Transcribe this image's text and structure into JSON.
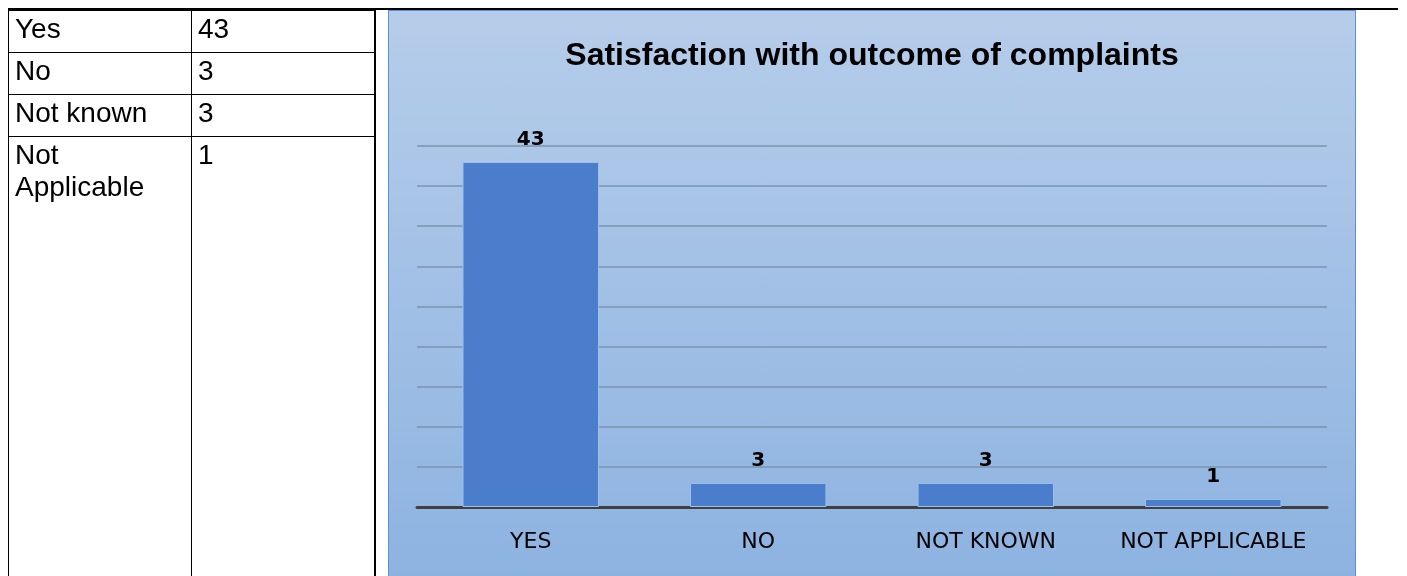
{
  "chart_data": [
    {
      "type": "other",
      "categories": [
        "Yes",
        "No",
        "Not known",
        "Not Applicable"
      ],
      "values": [
        43,
        3,
        3,
        1
      ],
      "data_labels": true
    },
    {
      "type": "bar",
      "title": "Satisfaction with outcome of complaints",
      "categories": [
        "YES",
        "NO",
        "NOT KNOWN",
        "NOT APPLICABLE"
      ],
      "values": [
        43,
        3,
        3,
        1
      ],
      "color": "#4a7dcb",
      "ylim": [
        0,
        45
      ],
      "yticks": [
        {
          "value": 0,
          "label": null
        },
        {
          "value": 5,
          "label": null
        },
        {
          "value": 10,
          "label": null
        },
        {
          "value": 15,
          "label": null
        },
        {
          "value": 20,
          "label": null
        },
        {
          "value": 25,
          "label": null
        },
        {
          "value": 30,
          "label": null
        },
        {
          "value": 35,
          "label": null
        },
        {
          "value": 40,
          "label": null
        },
        {
          "value": 45,
          "label": null
        }
      ],
      "grid": "y",
      "data_labels": true,
      "tick_labels": "x"
    }
  ]
}
